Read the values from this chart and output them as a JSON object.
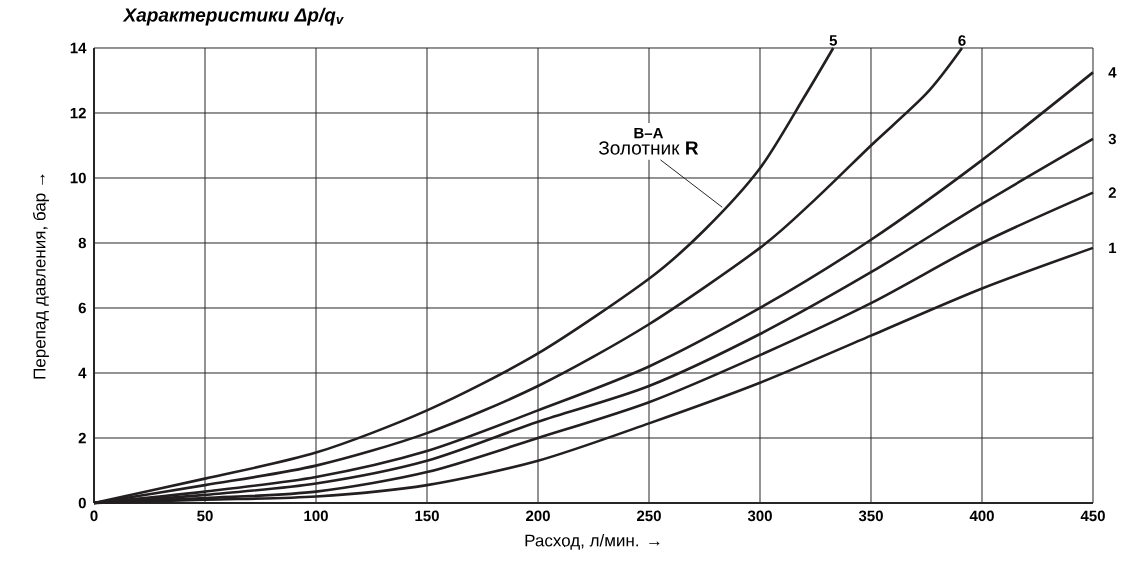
{
  "chart_data": {
    "type": "line",
    "title": "Характеристики Δp/q$_{v}$",
    "xlabel": "Расход, л/мин. →",
    "ylabel": "Перепад давления, бар →",
    "x": [
      0,
      50,
      100,
      150,
      200,
      250,
      300,
      350,
      400,
      450
    ],
    "series": [
      {
        "name": "1",
        "color": "#231f20",
        "values": [
          0,
          0.1,
          0.2,
          0.55,
          1.3,
          2.45,
          3.7,
          5.15,
          6.6,
          7.85
        ]
      },
      {
        "name": "2",
        "color": "#231f20",
        "values": [
          0,
          0.15,
          0.35,
          0.95,
          2.0,
          3.1,
          4.55,
          6.15,
          8.0,
          9.55
        ]
      },
      {
        "name": "3",
        "color": "#231f20",
        "values": [
          0,
          0.25,
          0.6,
          1.3,
          2.5,
          3.6,
          5.2,
          7.1,
          9.2,
          11.2
        ]
      },
      {
        "name": "4",
        "color": "#231f20",
        "values": [
          0,
          0.35,
          0.8,
          1.6,
          2.85,
          4.2,
          6.0,
          8.1,
          10.55,
          13.25
        ]
      },
      {
        "name": "5",
        "color": "#231f20",
        "x": [
          0,
          50,
          100,
          150,
          200,
          250,
          275,
          300,
          320,
          333
        ],
        "values": [
          0,
          0.75,
          1.55,
          2.85,
          4.6,
          6.9,
          8.4,
          10.3,
          12.5,
          14
        ]
      },
      {
        "name": "6",
        "color": "#231f20",
        "x": [
          0,
          50,
          100,
          150,
          200,
          250,
          300,
          325,
          350,
          375,
          391
        ],
        "values": [
          0,
          0.55,
          1.15,
          2.15,
          3.6,
          5.5,
          7.85,
          9.35,
          11.0,
          12.6,
          14
        ]
      }
    ],
    "annotations": [
      "B–A",
      {
        "text": "Золотник **R**",
        "x": 283,
        "y": 9.1
      }
    ],
    "xlim": [
      0,
      450
    ],
    "ylim": [
      0,
      14
    ],
    "xticks": [
      0,
      50,
      100,
      150,
      200,
      250,
      300,
      350,
      400,
      450
    ],
    "yticks": [
      0,
      2,
      4,
      6,
      8,
      10,
      12,
      14
    ],
    "grid": true,
    "marker": "none",
    "line_style": "solid"
  }
}
